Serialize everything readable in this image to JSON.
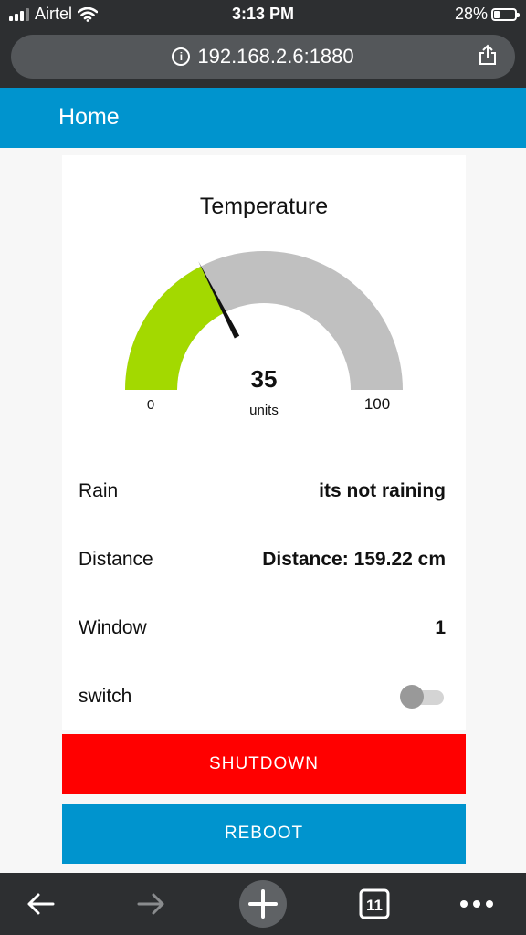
{
  "status_bar": {
    "carrier": "Airtel",
    "time": "3:13 PM",
    "battery_percent": "28%",
    "battery_level": 0.28,
    "icons": [
      "signal-icon",
      "wifi-icon",
      "battery-icon"
    ]
  },
  "browser": {
    "url": "192.168.2.6:1880",
    "icons": [
      "info-icon",
      "share-icon"
    ]
  },
  "header": {
    "title": "Home",
    "color": "#0094ce"
  },
  "gauge": {
    "title": "Temperature",
    "value": 35,
    "value_text": "35",
    "units": "units",
    "min": 0,
    "max": 100,
    "min_label": "0",
    "max_label": "100",
    "fill_color": "#a3d900",
    "track_color": "#c0c0c0"
  },
  "rows": [
    {
      "label": "Rain",
      "value": "its not raining"
    },
    {
      "label": "Distance",
      "value": "Distance: 159.22 cm"
    },
    {
      "label": "Window",
      "value": "1"
    },
    {
      "label": "switch",
      "toggle_on": false
    }
  ],
  "buttons": {
    "shutdown": {
      "label": "SHUTDOWN",
      "color": "#ff0000"
    },
    "reboot": {
      "label": "REBOOT",
      "color": "#0094ce"
    }
  },
  "toolbar": {
    "tab_count": "11",
    "icons": [
      "back-arrow-icon",
      "forward-arrow-icon",
      "new-tab-plus-icon",
      "tabs-icon",
      "more-dots-icon"
    ]
  }
}
